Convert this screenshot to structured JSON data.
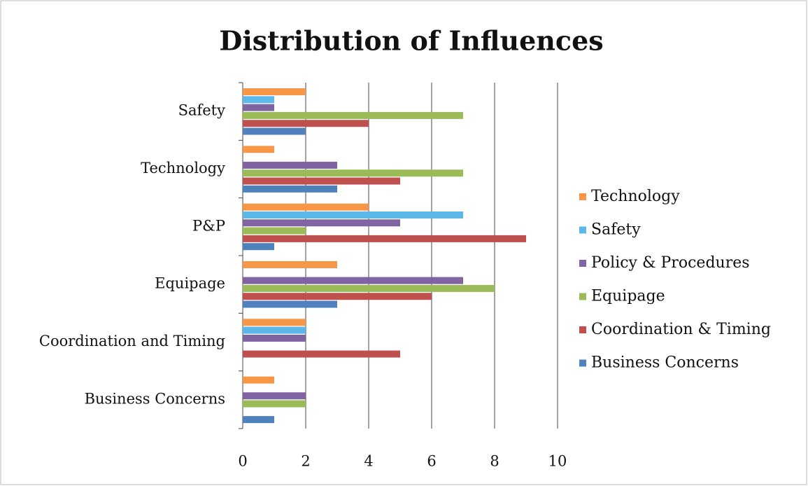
{
  "chart_data": {
    "type": "bar",
    "orientation": "horizontal",
    "title": "Distribution of Influences",
    "categories": [
      "Business Concerns",
      "Coordination and Timing",
      "Equipage",
      "P&P",
      "Technology",
      "Safety"
    ],
    "series": [
      {
        "name": "Technology",
        "color": "#f79646",
        "values": [
          1,
          2,
          3,
          4,
          1,
          2
        ]
      },
      {
        "name": "Safety",
        "color": "#5bb8e8",
        "values": [
          0,
          2,
          0,
          7,
          0,
          1
        ]
      },
      {
        "name": "Policy & Procedures",
        "color": "#8064a2",
        "values": [
          2,
          2,
          7,
          5,
          3,
          1
        ]
      },
      {
        "name": "Equipage",
        "color": "#9bbb59",
        "values": [
          2,
          0,
          8,
          2,
          7,
          7
        ]
      },
      {
        "name": "Coordination & Timing",
        "color": "#c0504d",
        "values": [
          0,
          5,
          6,
          9,
          5,
          4
        ]
      },
      {
        "name": "Business Concerns",
        "color": "#4f81bd",
        "values": [
          1,
          0,
          3,
          1,
          3,
          2
        ]
      }
    ],
    "xlim": [
      0,
      10
    ],
    "xticks": [
      0,
      2,
      4,
      6,
      8,
      10
    ],
    "grid": true,
    "legend": "right"
  }
}
